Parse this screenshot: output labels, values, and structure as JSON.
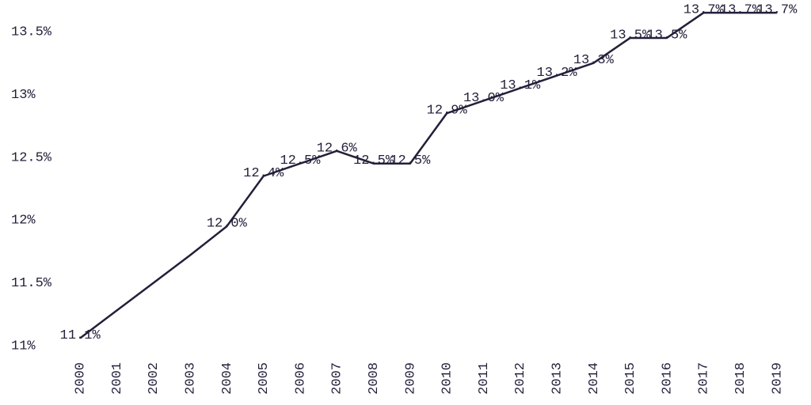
{
  "chart_data": {
    "type": "line",
    "categories": [
      "2000",
      "2001",
      "2002",
      "2003",
      "2004",
      "2005",
      "2006",
      "2007",
      "2008",
      "2009",
      "2010",
      "2011",
      "2012",
      "2013",
      "2014",
      "2015",
      "2016",
      "2017",
      "2018",
      "2019"
    ],
    "values": [
      11.06,
      11.28,
      11.5,
      11.72,
      11.95,
      12.35,
      12.45,
      12.55,
      12.45,
      12.45,
      12.85,
      12.95,
      13.05,
      13.15,
      13.25,
      13.45,
      13.45,
      13.65,
      13.65,
      13.65
    ],
    "value_labels": [
      "11.1%",
      null,
      null,
      null,
      "12.0%",
      "12.4%",
      "12.5%",
      "12.6%",
      "12.5%",
      "12.5%",
      "12.9%",
      "13.0%",
      "13.1%",
      "13.2%",
      "13.3%",
      "13.5%",
      "13.5%",
      "13.7%",
      "13.7%",
      "13.7%"
    ],
    "color": "#231f3a",
    "ylim": [
      11,
      13.75
    ],
    "yticks": [
      {
        "value": 11,
        "label": "11%"
      },
      {
        "value": 11.5,
        "label": "11.5%"
      },
      {
        "value": 12,
        "label": "12%"
      },
      {
        "value": 12.5,
        "label": "12.5%"
      },
      {
        "value": 13,
        "label": "13%"
      },
      {
        "value": 13.5,
        "label": "13.5%"
      }
    ],
    "grid": false
  }
}
